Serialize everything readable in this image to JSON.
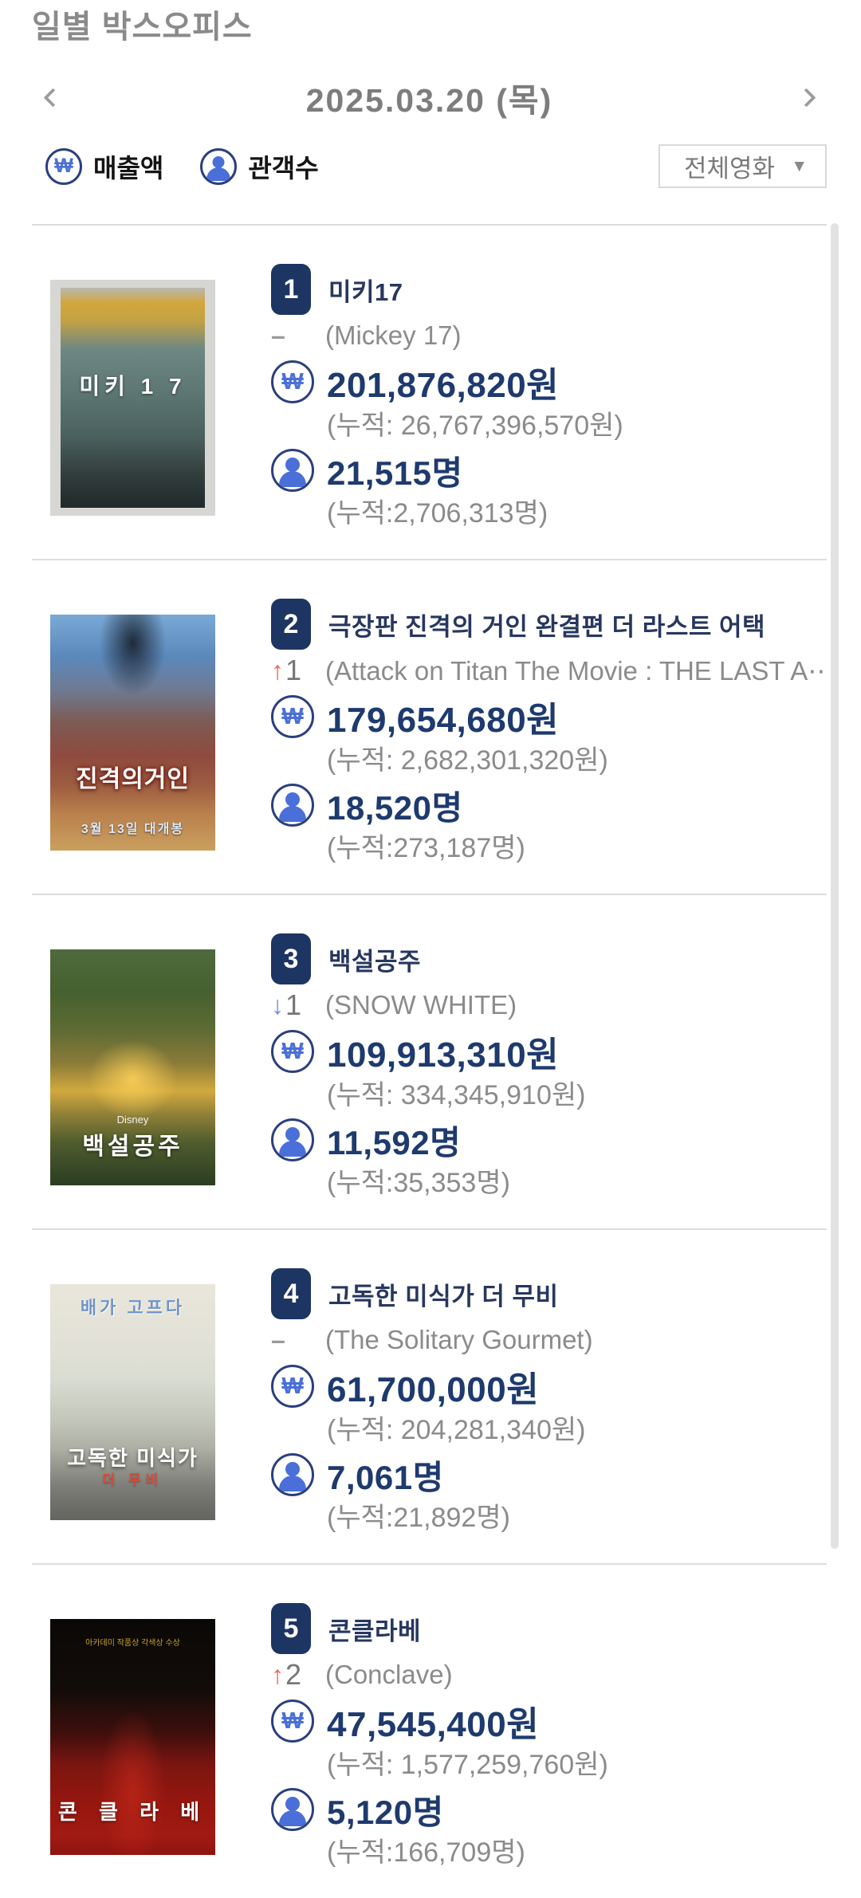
{
  "header": {
    "title": "일별 박스오피스"
  },
  "date_nav": {
    "date": "2025.03.20 (목)"
  },
  "legend": {
    "revenue": "매출액",
    "audience": "관객수"
  },
  "icons": {
    "won": "₩",
    "caret": "▼"
  },
  "filter": {
    "selected": "전체영화"
  },
  "colors": {
    "badge_navy": "#1d3563",
    "value_navy": "#1e3a6e",
    "icon_ring_navy": "#2b3f7e",
    "icon_blue": "#4a6fd8",
    "rank_up_red": "#ee6352",
    "rank_down_blue": "#6b8de0",
    "muted_gray": "#8b8b8b",
    "separator_gray": "#dcdcdc"
  },
  "movies": [
    {
      "rank": "1",
      "title": "미키17",
      "change": {
        "arrow": "–",
        "num": "",
        "dir": "same"
      },
      "english_title": "(Mickey 17)",
      "revenue": "201,876,820원",
      "revenue_cum": "(누적: 26,767,396,570원)",
      "audience": "21,515명",
      "audience_cum": "(누적:2,706,313명)",
      "poster": {
        "style": "background:linear-gradient(180deg,#b8b8b2 0%,#d2a63c 7%,#c2a245 15%,#6d8783 28%,#5d7673 48%,#4a605d 68%,#333f3e 84%,#20292a 100%)",
        "top_text": "",
        "title_text": "미키 1 7",
        "sub_text": ""
      }
    },
    {
      "rank": "2",
      "title": "극장판 진격의 거인 완결편 더 라스트 어택",
      "change": {
        "arrow": "↑",
        "num": "1",
        "dir": "up"
      },
      "english_title": "(Attack on Titan The Movie : THE LAST A⋯",
      "revenue": "179,654,680원",
      "revenue_cum": "(누적: 2,682,301,320원)",
      "audience": "18,520명",
      "audience_cum": "(누적:273,187명)",
      "poster": {
        "style": "background:radial-gradient(ellipse 60px 95px at 50% 12%,rgba(18,24,34,0.85),rgba(18,24,34,0) 70%),linear-gradient(180deg,#79a9d6 0%,#5b88bb 18%,#6f7a92 32%,#7d5a52 46%,#8f4a3e 60%,#9c5c41 72%,#b97f4c 84%,#caa05e 100%)",
        "top_text": "",
        "title_text": "진격의거인",
        "sub_text": "3월 13일 대개봉"
      }
    },
    {
      "rank": "3",
      "title": "백설공주",
      "change": {
        "arrow": "↓",
        "num": "1",
        "dir": "down"
      },
      "english_title": "(SNOW WHITE)",
      "revenue": "109,913,310원",
      "revenue_cum": "(누적: 334,345,910원)",
      "audience": "11,592명",
      "audience_cum": "(누적:35,353명)",
      "poster": {
        "style": "background:radial-gradient(ellipse 75px 65px at 50% 55%,rgba(255,210,90,0.85),rgba(255,210,90,0) 75%),linear-gradient(180deg,#4f6a3d 0%,#46602f 18%,#5d6b34 34%,#8a7b38 48%,#d1a93e 60%,#8f8038 70%,#4e5c2d 82%,#2b3d22 100%)",
        "top_text": "Disney",
        "title_text": "백설공주",
        "sub_text": ""
      }
    },
    {
      "rank": "4",
      "title": "고독한 미식가 더 무비",
      "change": {
        "arrow": "–",
        "num": "",
        "dir": "same"
      },
      "english_title": "(The Solitary Gourmet)",
      "revenue": "61,700,000원",
      "revenue_cum": "(누적: 204,281,340원)",
      "audience": "7,061명",
      "audience_cum": "(누적:21,892명)",
      "poster": {
        "style": "background:linear-gradient(0deg,rgba(40,40,40,0.35) 0%,rgba(40,40,40,0) 30%),linear-gradient(180deg,#e9e6da 0%,#e3e2d8 22%,#d9dcd2 40%,#c2c6ba 58%,#a9aaa0 72%,#90908a 86%,#83837d 100%)",
        "top_text": "배가 고프다",
        "title_text": "고독한 미식가",
        "sub_text": "더 무비"
      }
    },
    {
      "rank": "5",
      "title": "콘클라베",
      "change": {
        "arrow": "↑",
        "num": "2",
        "dir": "up"
      },
      "english_title": "(Conclave)",
      "revenue": "47,545,400원",
      "revenue_cum": "(누적: 1,577,259,760원)",
      "audience": "5,120명",
      "audience_cum": "(누적:166,709명)",
      "poster": {
        "style": "background:radial-gradient(ellipse 58px 140px at 50% 72%,rgba(210,45,28,0.55),rgba(210,45,28,0) 72%),linear-gradient(180deg,#0a0806 0%,#120c09 30%,#3d0f0c 48%,#7c1511 62%,#96170f 78%,#a01a12 92%,#8e1410 100%)",
        "top_text": "아카데미 작품상 각색상 수상",
        "title_text": "콘 클 라 베",
        "sub_text": ""
      }
    }
  ]
}
